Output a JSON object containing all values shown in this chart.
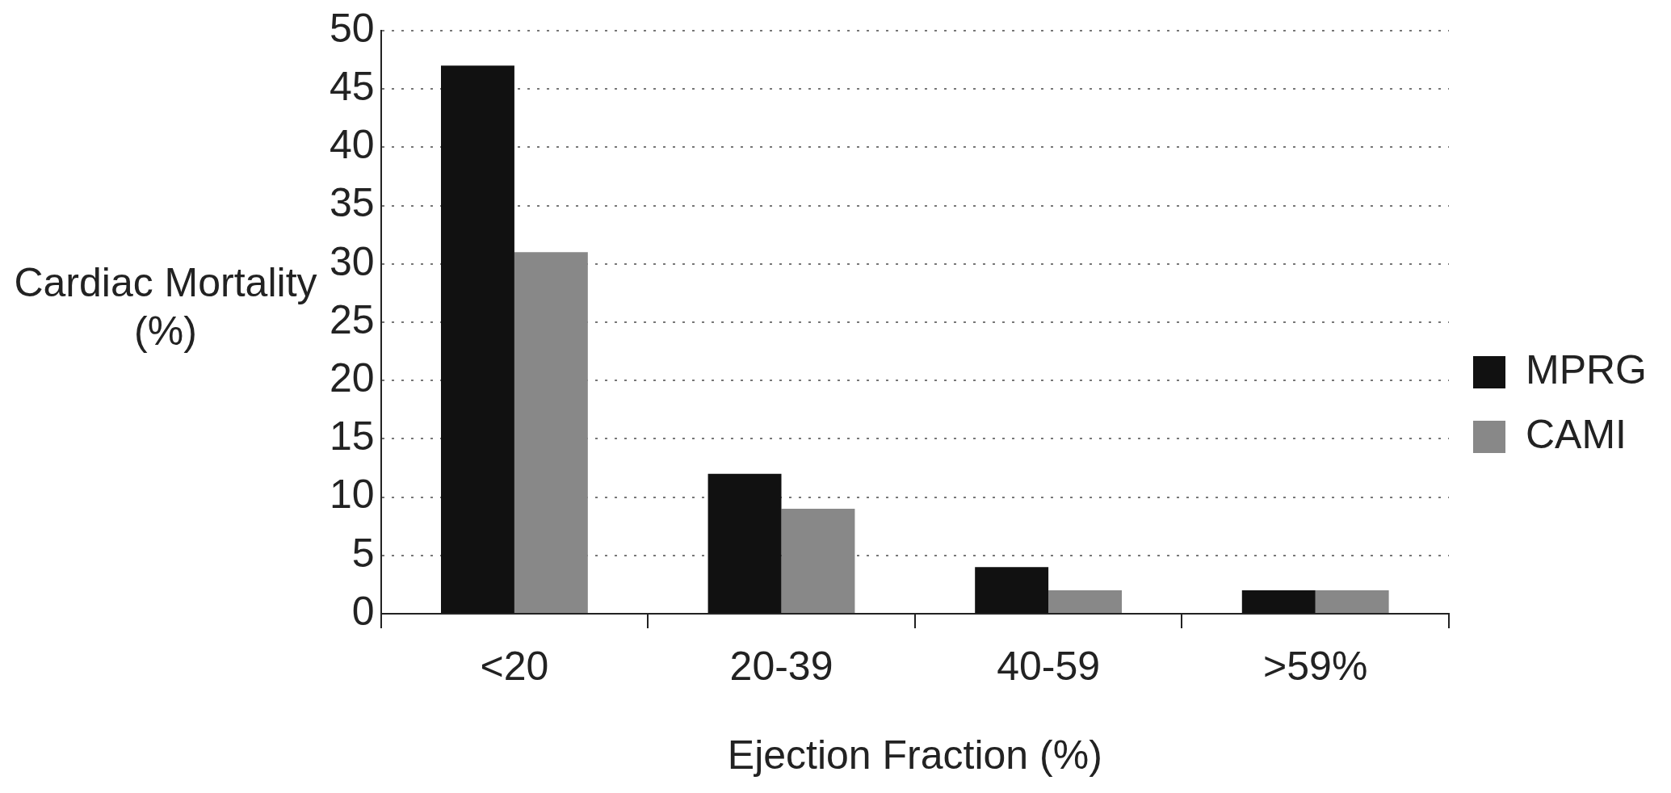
{
  "chart_data": {
    "type": "bar",
    "xlabel": "Ejection Fraction (%)",
    "ylabel": "Cardiac Mortality (%)",
    "categories": [
      "<20",
      "20-39",
      "40-59",
      ">59%"
    ],
    "series": [
      {
        "name": "MPRG",
        "color": "#111111",
        "values": [
          47,
          12,
          4,
          2
        ]
      },
      {
        "name": "CAMI",
        "color": "#888888",
        "values": [
          31,
          9,
          2,
          2
        ]
      }
    ],
    "ylim": [
      0,
      50
    ],
    "yticks": [
      0,
      5,
      10,
      15,
      20,
      25,
      30,
      35,
      40,
      45,
      50
    ],
    "grid": "y",
    "legend": "right"
  }
}
